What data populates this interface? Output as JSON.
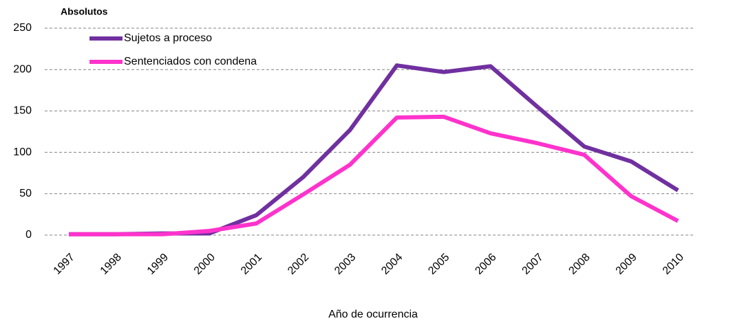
{
  "chart_data": {
    "type": "line",
    "ylabel": "Absolutos",
    "xlabel": "Año de ocurrencia",
    "categories": [
      "1997",
      "1998",
      "1999",
      "2000",
      "2001",
      "2002",
      "2003",
      "2004",
      "2005",
      "2006",
      "2007",
      "2008",
      "2009",
      "2010"
    ],
    "series": [
      {
        "name": "Sujetos a proceso",
        "color": "#7030a0",
        "values": [
          1,
          1,
          2,
          2,
          24,
          70,
          127,
          205,
          197,
          204,
          155,
          107,
          89,
          54
        ]
      },
      {
        "name": "Sentenciados con condena",
        "color": "#ff33cc",
        "values": [
          1,
          1,
          1,
          5,
          14,
          49,
          85,
          142,
          143,
          123,
          111,
          97,
          47,
          17
        ]
      }
    ],
    "ylim": [
      0,
      250
    ],
    "yticks": [
      0,
      50,
      100,
      150,
      200,
      250
    ],
    "grid": true
  }
}
